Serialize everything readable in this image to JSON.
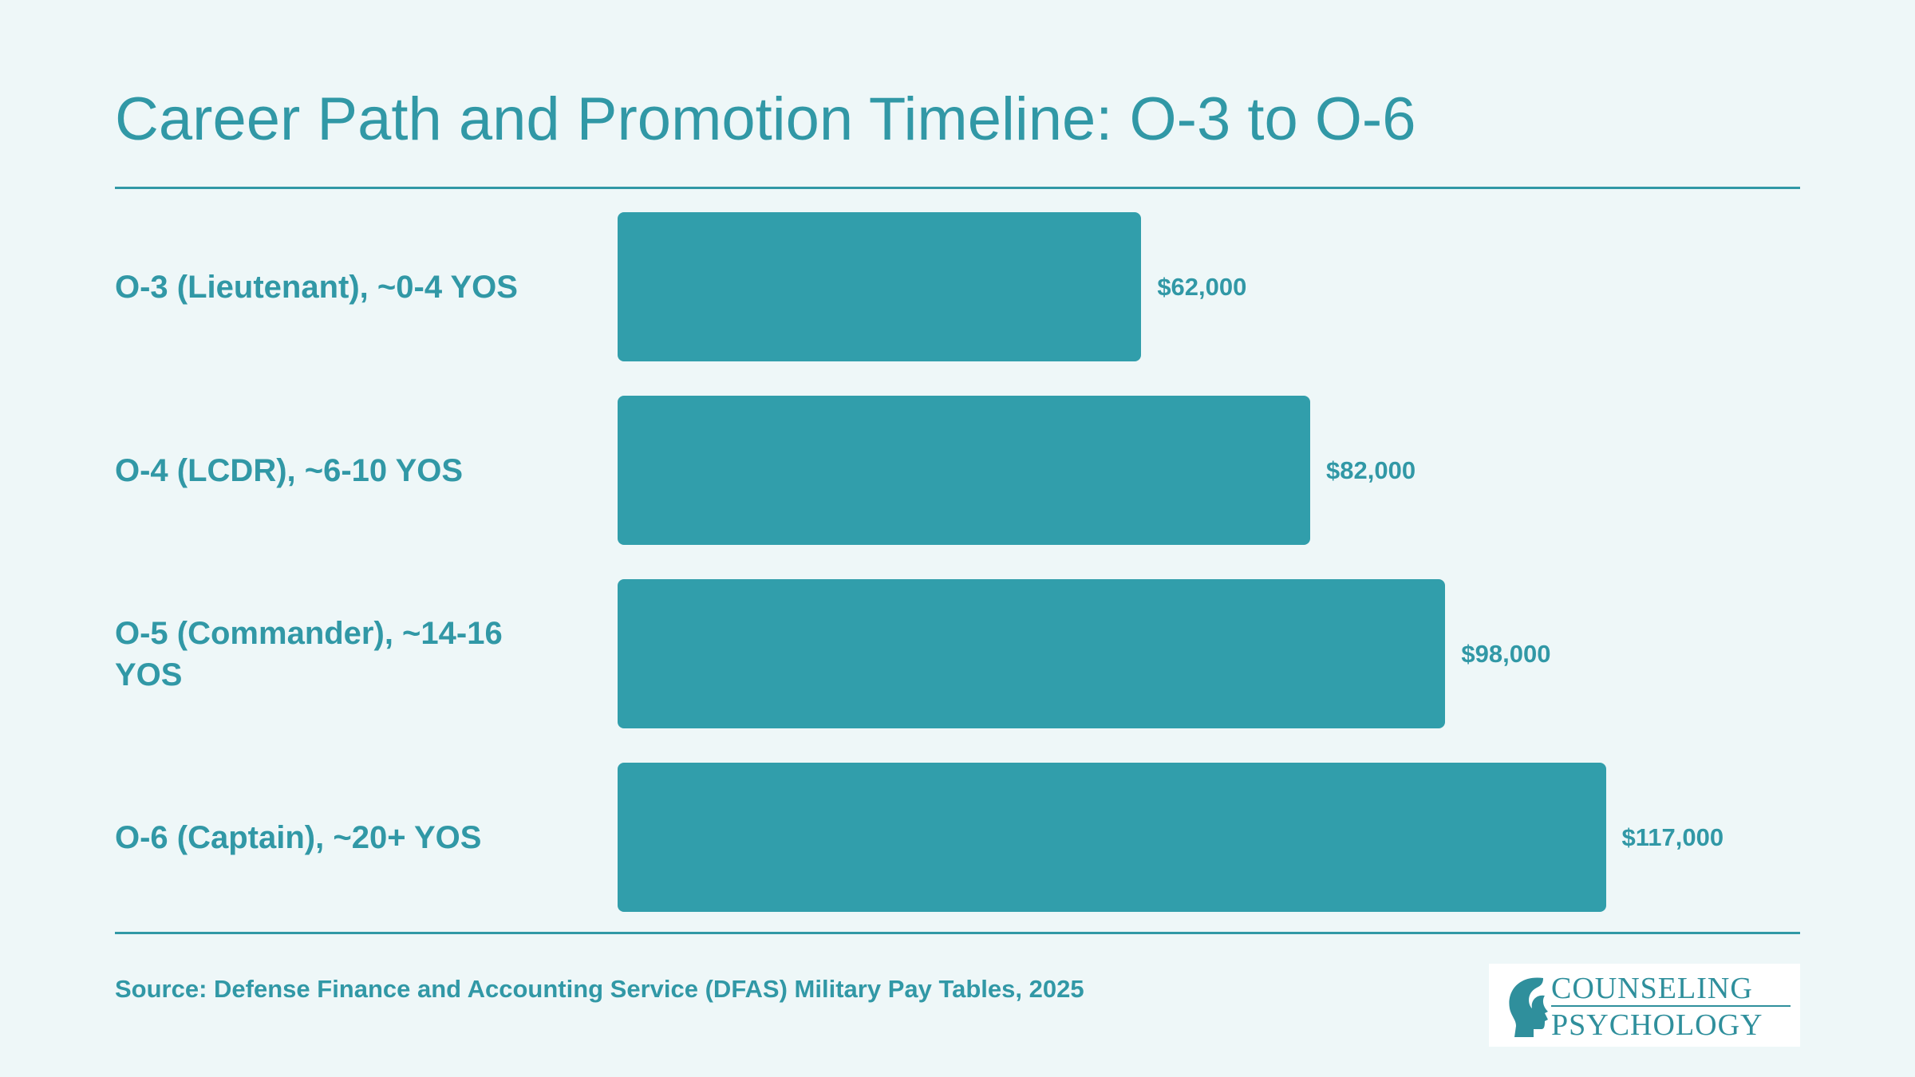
{
  "chart_data": {
    "type": "barh",
    "title": "Career Path and Promotion Timeline: O-3 to O-6",
    "categories": [
      "O-3 (Lieutenant), ~0-4 YOS",
      "O-4 (LCDR), ~6-10 YOS",
      "O-5 (Commander), ~14-16 YOS",
      "O-6 (Captain), ~20+ YOS"
    ],
    "values": [
      62000,
      82000,
      98000,
      117000
    ],
    "value_labels": [
      "$62,000",
      "$82,000",
      "$98,000",
      "$117,000"
    ],
    "color": "#319eab",
    "xlim": [
      0,
      140000
    ],
    "source": "Source: Defense Finance and Accounting Service (DFAS) Military Pay Tables, 2025"
  },
  "logo": {
    "line1": "COUNSELING",
    "line2": "PSYCHOLOGY"
  }
}
